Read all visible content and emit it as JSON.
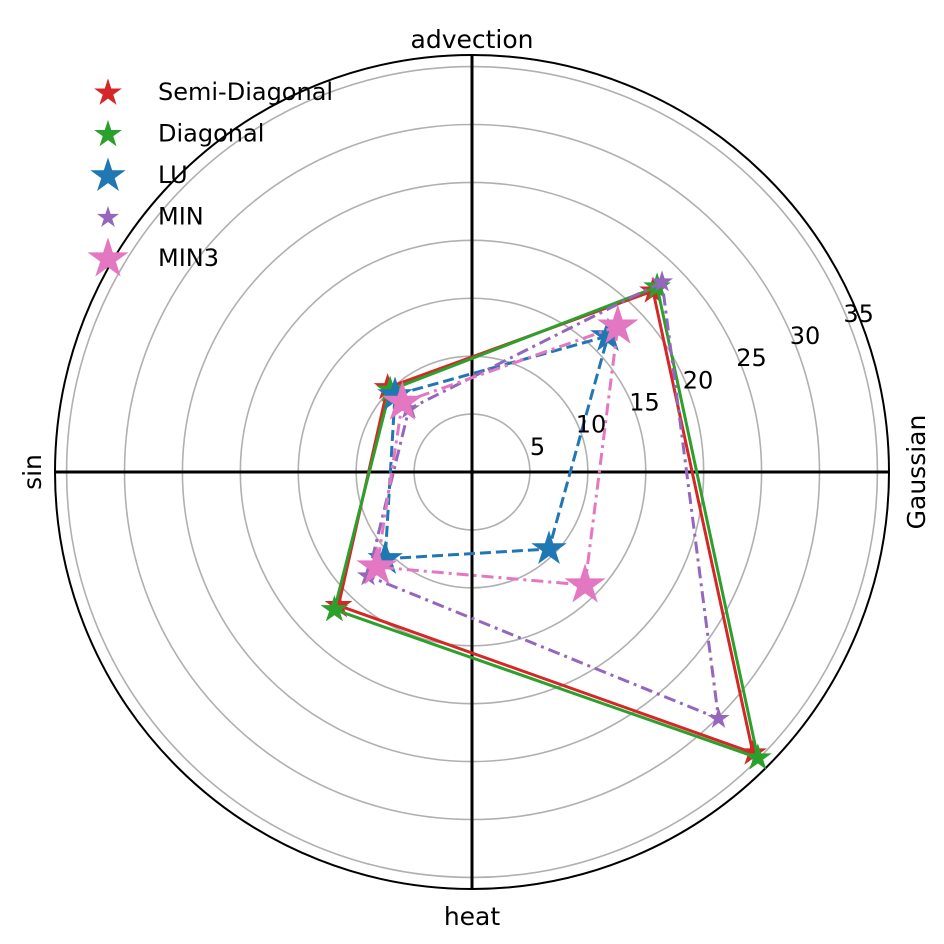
{
  "chart_data": {
    "type": "radar",
    "categories": [
      "Gaussian",
      "advection",
      "sin",
      "heat"
    ],
    "category_angles_deg": [
      0,
      90,
      180,
      270
    ],
    "rlim": [
      0,
      36
    ],
    "rticks": [
      5,
      10,
      15,
      20,
      25,
      30,
      35
    ],
    "rtick_labels": [
      "5",
      "10",
      "15",
      "20",
      "25",
      "30",
      "35"
    ],
    "rlabel_angle_deg": 22.5,
    "grid": true,
    "legend_position": "top-left",
    "series": [
      {
        "name": "Semi-Diagonal",
        "color": "#d62728",
        "linestyle": "solid",
        "marker": "star",
        "marker_size": 13,
        "points": [
          [
            45,
            22.1
          ],
          [
            135,
            10.3
          ],
          [
            225,
            16.3
          ],
          [
            315,
            34.3
          ]
        ]
      },
      {
        "name": "Diagonal",
        "color": "#2ca02c",
        "linestyle": "solid",
        "marker": "star",
        "marker_size": 13,
        "points": [
          [
            45,
            22.6
          ],
          [
            135,
            10.0
          ],
          [
            225,
            16.8
          ],
          [
            315,
            34.9
          ]
        ]
      },
      {
        "name": "LU",
        "color": "#1f77b4",
        "linestyle": "dashed",
        "marker": "star",
        "marker_size": 17,
        "points": [
          [
            45,
            16.6
          ],
          [
            135,
            9.4
          ],
          [
            225,
            10.6
          ],
          [
            315,
            9.4
          ]
        ]
      },
      {
        "name": "MIN",
        "color": "#9467bd",
        "linestyle": "dashdot",
        "marker": "star",
        "marker_size": 10,
        "points": [
          [
            45,
            23.2
          ],
          [
            135,
            7.7
          ],
          [
            225,
            12.7
          ],
          [
            315,
            30.1
          ]
        ]
      },
      {
        "name": "MIN3",
        "color": "#e377c2",
        "linestyle": "dashdot",
        "marker": "star",
        "marker_size": 20,
        "points": [
          [
            45,
            17.8
          ],
          [
            135,
            8.5
          ],
          [
            225,
            11.6
          ],
          [
            315,
            13.8
          ]
        ]
      }
    ]
  }
}
